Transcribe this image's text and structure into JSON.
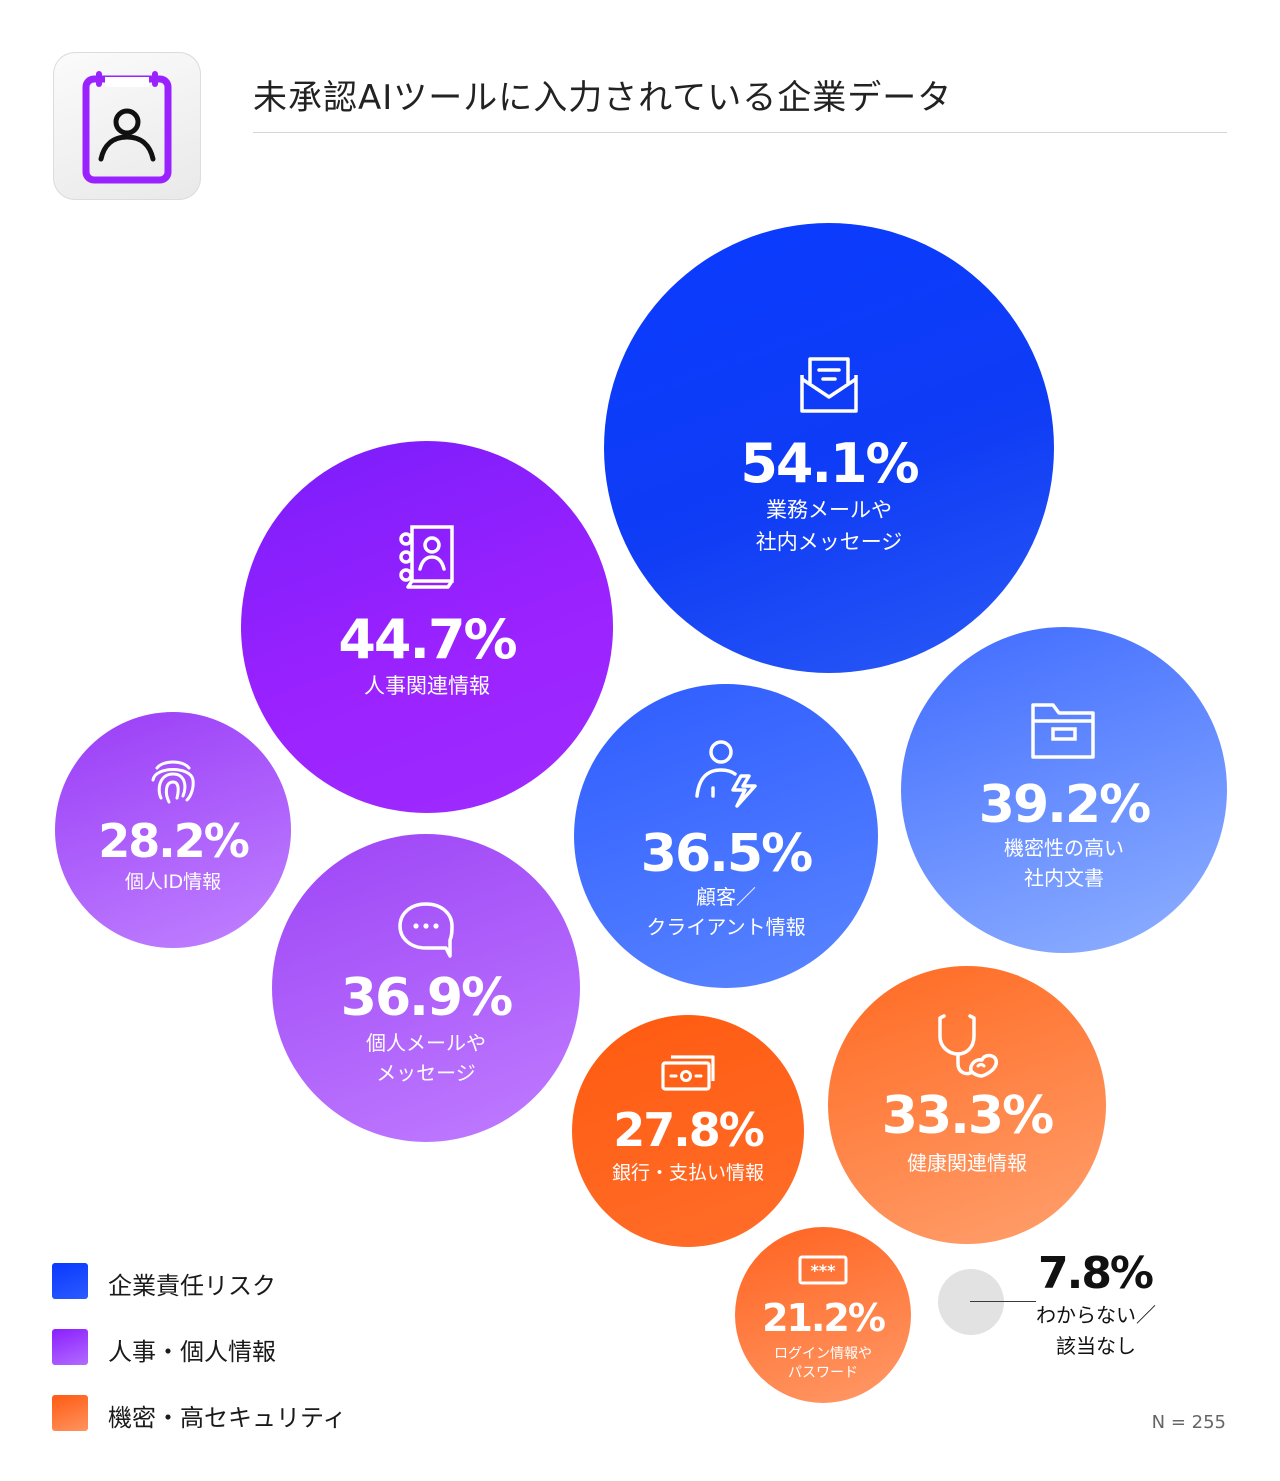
{
  "title": "未承認AIツールに入力されている企業データ",
  "footnote": "N = 255",
  "legend": [
    {
      "label": "企業責任リスク",
      "color": "#0b3cff"
    },
    {
      "label": "人事・個人情報",
      "color": "#9a2cff"
    },
    {
      "label": "機密・高セキュリティ",
      "color": "#ff6a22"
    }
  ],
  "chart_data": {
    "type": "bubble",
    "title": "未承認AIツールに入力されている企業データ",
    "unit": "%",
    "n": 255,
    "series": [
      {
        "name": "企業責任リスク",
        "points": [
          {
            "label": "業務メールや\n社内メッセージ",
            "value": 54.1,
            "display": "54.1%",
            "icon": "envelope-icon"
          },
          {
            "label": "機密性の高い\n社内文書",
            "value": 39.2,
            "display": "39.2%",
            "icon": "folder-icon"
          },
          {
            "label": "顧客／\nクライアント情報",
            "value": 36.5,
            "display": "36.5%",
            "icon": "person-bolt-icon"
          }
        ]
      },
      {
        "name": "人事・個人情報",
        "points": [
          {
            "label": "人事関連情報",
            "value": 44.7,
            "display": "44.7%",
            "icon": "contacts-book-icon"
          },
          {
            "label": "個人メールや\nメッセージ",
            "value": 36.9,
            "display": "36.9%",
            "icon": "chat-bubble-icon"
          },
          {
            "label": "個人ID情報",
            "value": 28.2,
            "display": "28.2%",
            "icon": "fingerprint-icon"
          }
        ]
      },
      {
        "name": "機密・高セキュリティ",
        "points": [
          {
            "label": "健康関連情報",
            "value": 33.3,
            "display": "33.3%",
            "icon": "stethoscope-icon"
          },
          {
            "label": "銀行・支払い情報",
            "value": 27.8,
            "display": "27.8%",
            "icon": "banknote-icon"
          },
          {
            "label": "ログイン情報や\nパスワード",
            "value": 21.2,
            "display": "21.2%",
            "icon": "password-icon"
          }
        ]
      }
    ],
    "other": {
      "label": "わからない／\n該当なし",
      "value": 7.8,
      "display": "7.8%"
    }
  }
}
